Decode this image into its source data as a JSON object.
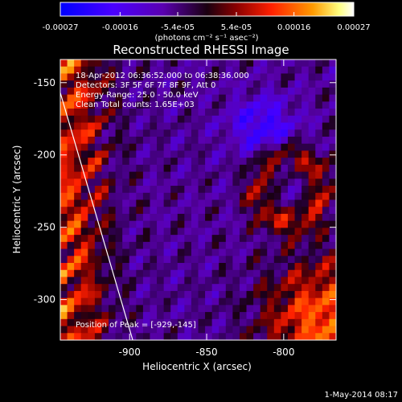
{
  "colorbar": {
    "tick_labels": [
      "-0.00027",
      "-0.00016",
      "-5.4e-05",
      "5.4e-05",
      "0.00016",
      "0.00027"
    ],
    "ticks": [
      -0.00027,
      -0.00016,
      -5.4e-05,
      5.4e-05,
      0.00016,
      0.00027
    ],
    "range": [
      -0.00027,
      0.00027
    ],
    "units": "(photons cm⁻² s⁻¹ asec⁻²)",
    "colors": [
      "#0000ff",
      "#5a00c8",
      "#1a001a",
      "#7a0000",
      "#ff2000",
      "#ff9000",
      "#ffff90",
      "#ffffff"
    ]
  },
  "chart_data": {
    "type": "heatmap",
    "title": "Reconstructed RHESSI Image",
    "xlabel": "Heliocentric X (arcsec)",
    "ylabel": "Heliocentric Y (arcsec)",
    "xlim": [
      -945,
      -766
    ],
    "ylim": [
      -328,
      -134
    ],
    "x_ticks": [
      -900,
      -850,
      -800
    ],
    "y_ticks": [
      -150,
      -200,
      -250,
      -300
    ],
    "annotations": {
      "time": "18-Apr-2012 06:36:52.000 to 06:38:36.000",
      "detectors": "Detectors: 3F 5F 6F 7F 8F 9F, Att 0",
      "energy": "Energy Range: 25.0 - 50.0 keV",
      "clean": "Clean     Total counts: 1.65E+03",
      "peak": "Position of Peak = [-929,-145]"
    },
    "limb_line": {
      "from": [
        -945,
        -157
      ],
      "to": [
        -898,
        -328
      ]
    },
    "grid": false
  },
  "footer": {
    "date": "1-May-2014 08:17"
  }
}
